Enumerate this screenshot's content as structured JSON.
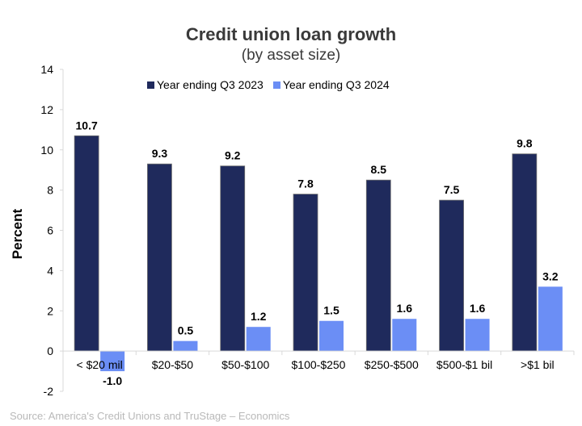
{
  "chart_data": {
    "type": "bar",
    "title": "Credit union loan growth",
    "subtitle": "(by asset size)",
    "ylabel": "Percent",
    "xlabel": "",
    "ylim": [
      -2,
      14
    ],
    "yticks": [
      -2,
      0,
      2,
      4,
      6,
      8,
      10,
      12,
      14
    ],
    "grid": false,
    "legend_position": "top",
    "categories": [
      "< $20 mil",
      "$20-$50",
      "$50-$100",
      "$100-$250",
      "$250-$500",
      "$500-$1 bil",
      ">$1 bil"
    ],
    "series": [
      {
        "name": "Year ending Q3 2023",
        "color": "#1f2a5c",
        "values": [
          10.7,
          9.3,
          9.2,
          7.8,
          8.5,
          7.5,
          9.8
        ]
      },
      {
        "name": "Year ending Q3 2024",
        "color": "#6b8ef5",
        "values": [
          -1.0,
          0.5,
          1.2,
          1.5,
          1.6,
          1.6,
          3.2
        ]
      }
    ],
    "source": "Source: America's Credit Unions and TruStage – Economics"
  }
}
